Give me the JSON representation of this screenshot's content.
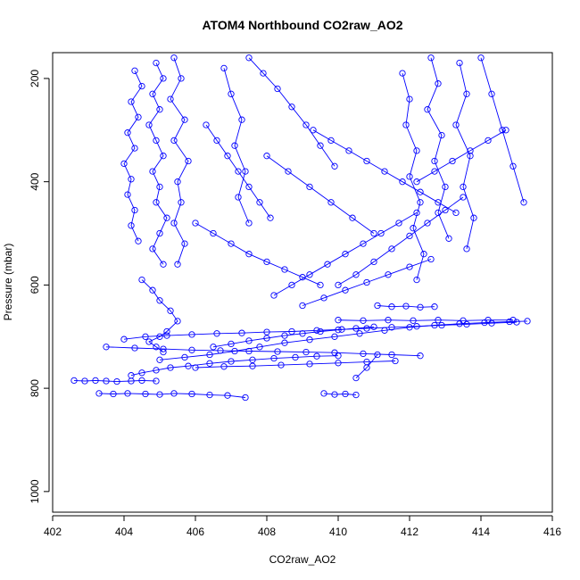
{
  "chart_data": {
    "type": "line",
    "title": "ATOM4 Northbound CO2raw_AO2",
    "xlabel": "CO2raw_AO2",
    "ylabel": "Pressure (mbar)",
    "xlim": [
      402,
      416
    ],
    "ylim": [
      1040,
      150
    ],
    "y_reversed": true,
    "x_ticks": [
      402,
      404,
      406,
      408,
      410,
      412,
      414,
      416
    ],
    "y_ticks": [
      200,
      400,
      600,
      800,
      1000
    ],
    "grid": false,
    "legend": "none",
    "series_color": "#0000ff",
    "marker": "open-circle",
    "series": [
      {
        "x": [
          402.6,
          402.9,
          403.2,
          403.5,
          403.8,
          404.2,
          404.5,
          404.9
        ],
        "y": [
          785,
          786,
          785,
          786,
          787,
          786,
          785,
          786
        ]
      },
      {
        "x": [
          403.3,
          403.7,
          404.1,
          404.6,
          405.0,
          405.4,
          405.9,
          406.4,
          406.9,
          407.4
        ],
        "y": [
          810,
          811,
          810,
          811,
          812,
          810,
          811,
          813,
          814,
          818
        ]
      },
      {
        "x": [
          404.2,
          404.5,
          404.9,
          405.3,
          405.8,
          406.4,
          407.0,
          407.6,
          408.2,
          408.8,
          409.4,
          410.0
        ],
        "y": [
          775,
          770,
          765,
          760,
          757,
          752,
          748,
          745,
          742,
          740,
          738,
          737
        ]
      },
      {
        "x": [
          404.0,
          404.6,
          405.2,
          405.9,
          406.6,
          407.3,
          408.0,
          408.7,
          409.4,
          410.1,
          410.8,
          411.5,
          412.2,
          412.9,
          413.6,
          414.3,
          415.0
        ],
        "y": [
          705,
          700,
          698,
          696,
          694,
          693,
          691,
          690,
          688,
          686,
          684,
          682,
          680,
          678,
          676,
          674,
          672
        ]
      },
      {
        "x": [
          405.0,
          405.7,
          406.4,
          407.1,
          407.8,
          408.5,
          409.2,
          409.9,
          410.6,
          411.3,
          412.0,
          412.7,
          413.4,
          414.1,
          414.8,
          415.3
        ],
        "y": [
          745,
          740,
          735,
          728,
          720,
          712,
          706,
          700,
          694,
          688,
          682,
          678,
          675,
          673,
          671,
          670
        ]
      },
      {
        "x": [
          403.5,
          404.3,
          405.1,
          405.9,
          406.7,
          407.5,
          408.3,
          409.1,
          409.9,
          410.7,
          411.5,
          412.3
        ],
        "y": [
          720,
          722,
          724,
          726,
          727,
          728,
          729,
          730,
          731,
          733,
          735,
          737
        ]
      },
      {
        "x": [
          406.0,
          406.8,
          407.6,
          408.4,
          409.2,
          410.0,
          410.8,
          411.6
        ],
        "y": [
          760,
          758,
          757,
          755,
          753,
          751,
          749,
          747
        ]
      },
      {
        "x": [
          410.0,
          410.7,
          411.4,
          412.1,
          412.8,
          413.5,
          414.2,
          414.9
        ],
        "y": [
          668,
          669,
          668,
          669,
          668,
          669,
          668,
          668
        ]
      },
      {
        "x": [
          411.1,
          411.5,
          411.9,
          412.3,
          412.7
        ],
        "y": [
          640,
          642,
          641,
          643,
          642
        ]
      },
      {
        "x": [
          404.3,
          404.5,
          404.2,
          404.4,
          404.1,
          404.3,
          404.0,
          404.2,
          404.1,
          404.3,
          404.2,
          404.4
        ],
        "y": [
          185,
          215,
          245,
          275,
          305,
          335,
          365,
          395,
          425,
          455,
          485,
          515
        ]
      },
      {
        "x": [
          404.9,
          405.1,
          404.8,
          405.0,
          404.7,
          404.9,
          405.1,
          404.8,
          405.0,
          404.9,
          405.2,
          405.0,
          404.8,
          405.1
        ],
        "y": [
          170,
          200,
          230,
          260,
          290,
          320,
          350,
          380,
          410,
          440,
          470,
          500,
          530,
          560
        ]
      },
      {
        "x": [
          405.4,
          405.6,
          405.3,
          405.7,
          405.4,
          405.8,
          405.5,
          405.6,
          405.4,
          405.7,
          405.5
        ],
        "y": [
          160,
          200,
          240,
          280,
          320,
          360,
          400,
          440,
          480,
          520,
          560
        ]
      },
      {
        "x": [
          404.5,
          404.8,
          405.0,
          405.3,
          405.5,
          405.2,
          405.0,
          404.7,
          404.9,
          405.1
        ],
        "y": [
          590,
          610,
          630,
          650,
          670,
          690,
          700,
          710,
          720,
          730
        ]
      },
      {
        "x": [
          406.3,
          406.6,
          406.9,
          407.2,
          407.5,
          407.8,
          408.1
        ],
        "y": [
          290,
          320,
          350,
          380,
          410,
          440,
          470
        ]
      },
      {
        "x": [
          406.8,
          407.0,
          407.3,
          407.1,
          407.4,
          407.2,
          407.5
        ],
        "y": [
          180,
          230,
          280,
          330,
          380,
          430,
          480
        ]
      },
      {
        "x": [
          407.5,
          407.9,
          408.3,
          408.7,
          409.1,
          409.5,
          409.9
        ],
        "y": [
          160,
          190,
          220,
          255,
          290,
          330,
          370
        ]
      },
      {
        "x": [
          406.0,
          406.5,
          407.0,
          407.5,
          408.0,
          408.5,
          409.0,
          409.5
        ],
        "y": [
          480,
          500,
          520,
          540,
          555,
          570,
          585,
          600
        ]
      },
      {
        "x": [
          408.2,
          408.7,
          409.2,
          409.7,
          410.2,
          410.7,
          411.2,
          411.7,
          412.2
        ],
        "y": [
          620,
          600,
          580,
          560,
          540,
          520,
          500,
          480,
          460
        ]
      },
      {
        "x": [
          409.3,
          409.8,
          410.3,
          410.8,
          411.3,
          411.8,
          412.3,
          412.8,
          413.3
        ],
        "y": [
          300,
          320,
          340,
          360,
          380,
          400,
          420,
          440,
          460
        ]
      },
      {
        "x": [
          411.8,
          412.0,
          411.9,
          412.2,
          412.0,
          412.3,
          412.1,
          412.4,
          412.2
        ],
        "y": [
          190,
          240,
          290,
          340,
          390,
          440,
          490,
          540,
          590
        ]
      },
      {
        "x": [
          412.6,
          412.8,
          412.5,
          412.9,
          412.7,
          413.0,
          412.8,
          413.1
        ],
        "y": [
          160,
          210,
          260,
          310,
          360,
          410,
          460,
          510
        ]
      },
      {
        "x": [
          413.4,
          413.6,
          413.3,
          413.7,
          413.5,
          413.8,
          413.6
        ],
        "y": [
          170,
          230,
          290,
          350,
          410,
          470,
          530
        ]
      },
      {
        "x": [
          414.0,
          414.3,
          414.6,
          414.9,
          415.2
        ],
        "y": [
          160,
          230,
          300,
          370,
          440
        ]
      },
      {
        "x": [
          410.0,
          410.5,
          411.0,
          411.5,
          412.0,
          412.5,
          413.0,
          413.5
        ],
        "y": [
          600,
          580,
          555,
          530,
          505,
          480,
          455,
          430
        ]
      },
      {
        "x": [
          408.0,
          408.6,
          409.2,
          409.8,
          410.4,
          411.0
        ],
        "y": [
          350,
          380,
          410,
          440,
          470,
          500
        ]
      },
      {
        "x": [
          409.0,
          409.6,
          410.2,
          410.8,
          411.4,
          412.0,
          412.6
        ],
        "y": [
          640,
          625,
          610,
          595,
          580,
          565,
          550
        ]
      },
      {
        "x": [
          412.2,
          412.7,
          413.2,
          413.7,
          414.2,
          414.7
        ],
        "y": [
          400,
          380,
          360,
          340,
          320,
          300
        ]
      },
      {
        "x": [
          406.5,
          407.0,
          407.5,
          408.0,
          408.5,
          409.0,
          409.5,
          410.0,
          410.5,
          411.0
        ],
        "y": [
          720,
          714,
          708,
          703,
          698,
          694,
          690,
          687,
          684,
          681
        ]
      },
      {
        "x": [
          409.6,
          409.9,
          410.2,
          410.5
        ],
        "y": [
          810,
          812,
          811,
          813
        ]
      },
      {
        "x": [
          410.5,
          410.8,
          411.1
        ],
        "y": [
          780,
          760,
          735
        ]
      }
    ]
  }
}
